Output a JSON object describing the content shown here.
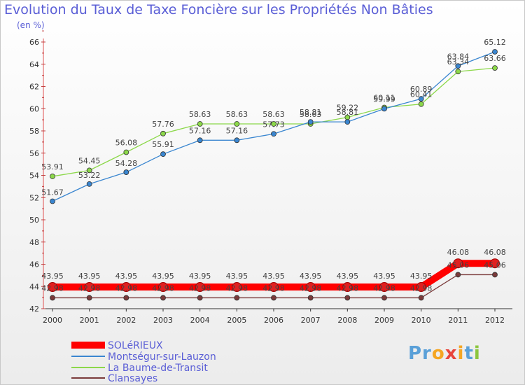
{
  "chart_data": {
    "type": "line",
    "title": "Evolution du Taux de Taxe Foncière sur les Propriétés Non Bâties",
    "ylabel": "(en %)",
    "x": [
      "2000",
      "2001",
      "2002",
      "2003",
      "2004",
      "2005",
      "2006",
      "2007",
      "2008",
      "2009",
      "2010",
      "2011",
      "2012"
    ],
    "ylim": [
      42,
      66
    ],
    "yticks": [
      42,
      44,
      46,
      48,
      50,
      52,
      54,
      56,
      58,
      60,
      62,
      64,
      66
    ],
    "grid": false,
    "legend_position": "bottom-left",
    "series": [
      {
        "name": "SOLéRIEUX",
        "color": "#ff0000",
        "values": [
          43.95,
          43.95,
          43.95,
          43.95,
          43.95,
          43.95,
          43.95,
          43.95,
          43.95,
          43.95,
          43.95,
          46.08,
          46.08
        ],
        "labels": [
          "43.95",
          "43.95",
          "43.95",
          "43.95",
          "43.95",
          "43.95",
          "43.95",
          "43.95",
          "43.95",
          "43.95",
          "43.95",
          "46.08",
          "46.08"
        ]
      },
      {
        "name": "Montségur-sur-Lauzon",
        "color": "#3a86d0",
        "values": [
          51.67,
          53.22,
          54.28,
          55.91,
          57.16,
          57.16,
          57.73,
          58.81,
          58.81,
          59.99,
          60.89,
          63.84,
          65.12
        ],
        "labels": [
          "51.67",
          "53.22",
          "54.28",
          "55.91",
          "57.16",
          "57.16",
          "57.73",
          "58.81",
          "58.81",
          "59.99",
          "60.89",
          "63.84",
          "65.12"
        ]
      },
      {
        "name": "La Baume-de-Transit",
        "color": "#8cd84a",
        "values": [
          53.91,
          54.45,
          56.08,
          57.76,
          58.63,
          58.63,
          58.63,
          58.63,
          59.22,
          60.11,
          60.41,
          63.34,
          63.66
        ],
        "labels": [
          "53.91",
          "54.45",
          "56.08",
          "57.76",
          "58.63",
          "58.63",
          "58.63",
          "58.63",
          "59.22",
          "60.11",
          "60.41",
          "63.34",
          "63.66"
        ]
      },
      {
        "name": "Clansayes",
        "color": "#7a3a3a",
        "values": [
          42.98,
          42.98,
          42.98,
          42.98,
          42.98,
          42.98,
          42.98,
          42.98,
          42.98,
          42.98,
          42.98,
          45.06,
          45.06
        ],
        "labels": [
          "42.98",
          "42.98",
          "42.98",
          "42.98",
          "42.98",
          "42.98",
          "42.98",
          "42.98",
          "42.98",
          "42.98",
          "42.98",
          "45.06",
          "45.06"
        ]
      }
    ]
  },
  "logo": {
    "parts": [
      "Pr",
      "o",
      "x",
      "i",
      "t",
      "i"
    ],
    "colors": [
      "#5aa0d8",
      "#f5a623",
      "#e8453c",
      "#f5a623",
      "#5aa0d8",
      "#8cc63f"
    ]
  }
}
